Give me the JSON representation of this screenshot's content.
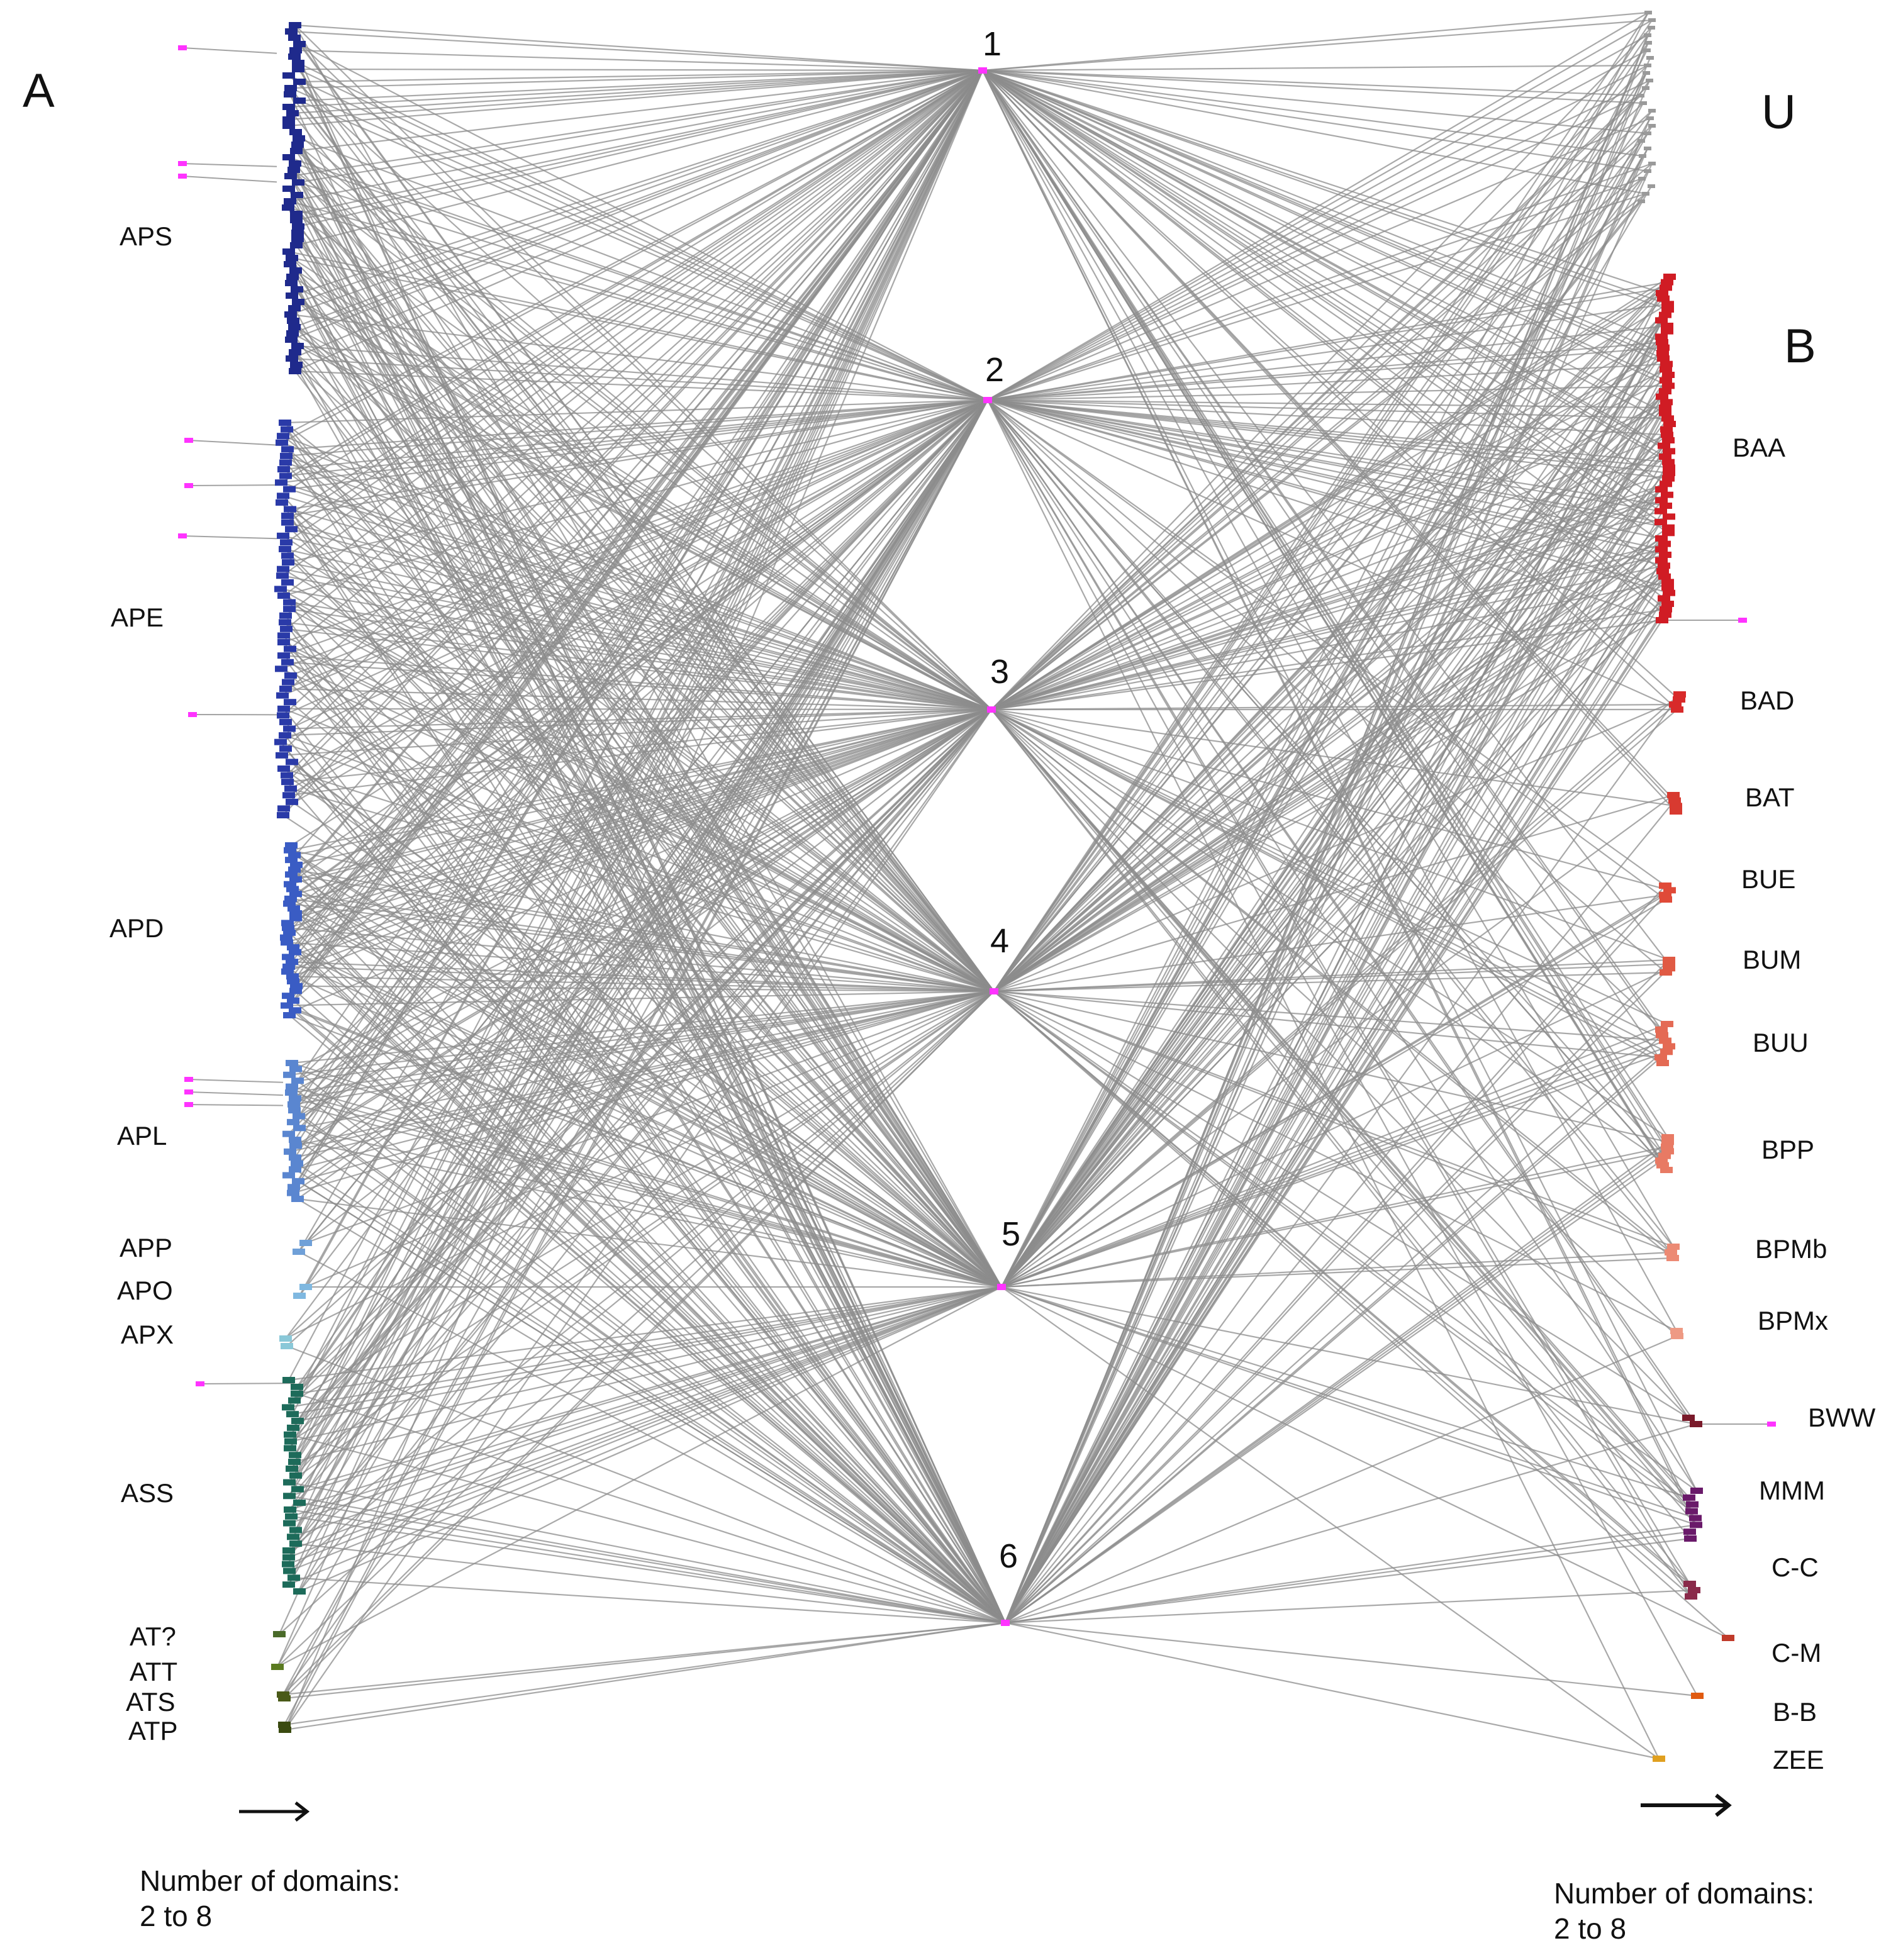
{
  "panels": {
    "left": "A",
    "upper_right": "U",
    "right": "B"
  },
  "hubs": [
    "1",
    "2",
    "3",
    "4",
    "5",
    "6"
  ],
  "left_groups": [
    "APS",
    "APE",
    "APD",
    "APL",
    "APP",
    "APO",
    "APX",
    "ASS",
    "AT?",
    "ATT",
    "ATS",
    "ATP"
  ],
  "right_groups": [
    "BAA",
    "BAD",
    "BAT",
    "BUE",
    "BUM",
    "BUU",
    "BPP",
    "BPMb",
    "BPMx",
    "BWW",
    "MMM",
    "C-C",
    "C-M",
    "B-B",
    "ZEE"
  ],
  "footer": {
    "left_line1": "Number of domains:",
    "left_line2": "2 to 8",
    "right_line1": "Number of domains:",
    "right_line2": "2 to 8"
  },
  "colors": {
    "edge": "#8c8c8c",
    "hub_node": "#ff33ff",
    "left_groups": {
      "APS": "#1f2a8c",
      "APE": "#2a3aa8",
      "APD": "#3a5cc4",
      "APL": "#5a86d0",
      "APP": "#6fa0d8",
      "APO": "#7fb8e0",
      "APX": "#8ac8d8",
      "ASS": "#1d6b5a",
      "AT?": "#4a6b2a",
      "ATT": "#5a7a20",
      "ATS": "#4a5a18",
      "ATP": "#3a4a10"
    },
    "right_groups": {
      "BAA": "#d01c24",
      "BAD": "#d82a2a",
      "BAT": "#d83a30",
      "BUE": "#e04a38",
      "BUM": "#e05a44",
      "BUU": "#e46a54",
      "BPP": "#e87a64",
      "BPMb": "#ec8a74",
      "BPMx": "#ee9a84",
      "BWW": "#7a1a2a",
      "MMM": "#6a1a6a",
      "C-C": "#8a2a4a",
      "C-M": "#c03a2a",
      "B-B": "#e05a10",
      "ZEE": "#e0a020"
    }
  }
}
